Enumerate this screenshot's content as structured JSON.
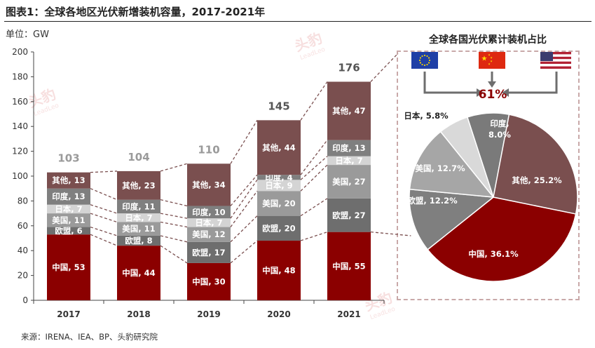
{
  "title": "图表1：全球各地区光伏新增装机容量，2017-2021年",
  "unit_label": "单位：GW",
  "source": "来源：IRENA、IEA、BP、头豹研究院",
  "watermark": "头豹 LeadLeo",
  "chart_data": [
    {
      "type": "bar",
      "stacked": true,
      "categories": [
        "2017",
        "2018",
        "2019",
        "2020",
        "2021"
      ],
      "ylim": [
        0,
        200
      ],
      "yticks": [
        0,
        20,
        40,
        60,
        80,
        100,
        120,
        140,
        160,
        180,
        200
      ],
      "totals": [
        103,
        104,
        110,
        145,
        176
      ],
      "series": [
        {
          "name": "中国",
          "values": [
            53,
            44,
            30,
            48,
            55
          ],
          "color": "#8b0000"
        },
        {
          "name": "欧盟",
          "values": [
            6,
            8,
            17,
            20,
            27
          ],
          "color": "#6e6e6e"
        },
        {
          "name": "美国",
          "values": [
            11,
            11,
            12,
            20,
            27
          ],
          "color": "#9a9a9a"
        },
        {
          "name": "日本",
          "values": [
            7,
            7,
            7,
            9,
            7
          ],
          "color": "#d4d4d4"
        },
        {
          "name": "印度",
          "values": [
            13,
            11,
            10,
            4,
            13
          ],
          "color": "#7f7f7f"
        },
        {
          "name": "其他",
          "values": [
            13,
            23,
            34,
            44,
            47
          ],
          "color": "#7a4f4f"
        }
      ],
      "grid": false
    },
    {
      "type": "pie",
      "title": "全球各国光伏累计装机占比",
      "callout": "61%",
      "flags": [
        "eu-flag-icon",
        "china-flag-icon",
        "usa-flag-icon"
      ],
      "slices": [
        {
          "name": "中国",
          "value": 36.1,
          "label": "中国, 36.1%",
          "color": "#8b0000"
        },
        {
          "name": "欧盟",
          "value": 12.2,
          "label": "欧盟, 12.2%",
          "color": "#7f7f7f"
        },
        {
          "name": "美国",
          "value": 12.7,
          "label": "美国, 12.7%",
          "color": "#a6a6a6"
        },
        {
          "name": "日本",
          "value": 5.8,
          "label": "日本, 5.8%",
          "color": "#d9d9d9"
        },
        {
          "name": "印度",
          "value": 8.0,
          "label": "印度,\n8.0%",
          "color": "#7a7a7a"
        },
        {
          "name": "其他",
          "value": 25.2,
          "label": "其他, 25.2%",
          "color": "#7a4f4f"
        }
      ]
    }
  ]
}
